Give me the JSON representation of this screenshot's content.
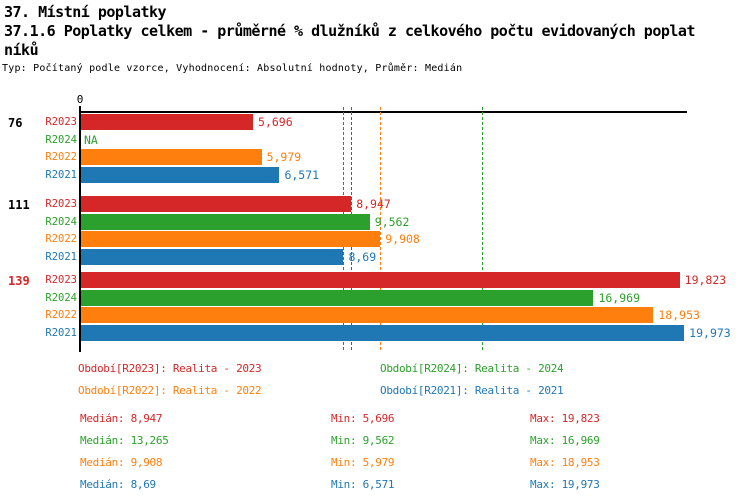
{
  "header": {
    "title_line1": "37. Místní poplatky",
    "title_line2": "37.1.6 Poplatky celkem - průměrné % dlužníků z celkového počtu evidovaných poplat",
    "title_line3": "níků",
    "meta": "Typ: Počítaný podle vzorce, Vyhodnocení: Absolutní hodnoty, Průměr: Medián"
  },
  "colors": {
    "R2023": "#d62728",
    "R2024": "#2ca02c",
    "R2022": "#ff7f0e",
    "R2021": "#1f77b4",
    "axis": "#000000",
    "highlight_group_label": "#d62728",
    "group_label": "#000000"
  },
  "chart_data": {
    "type": "bar",
    "orientation": "horizontal",
    "axis": {
      "tick0_label": "0",
      "xlim": [
        0,
        20
      ],
      "grid": false
    },
    "series_order": [
      "R2023",
      "R2024",
      "R2022",
      "R2021"
    ],
    "groups": [
      {
        "label": "76",
        "highlight": false,
        "bars": [
          {
            "series": "R2023",
            "value": 5.696,
            "label": "5,696"
          },
          {
            "series": "R2024",
            "value": null,
            "label": "NA"
          },
          {
            "series": "R2022",
            "value": 5.979,
            "label": "5,979"
          },
          {
            "series": "R2021",
            "value": 6.571,
            "label": "6,571"
          }
        ]
      },
      {
        "label": "111",
        "highlight": false,
        "bars": [
          {
            "series": "R2023",
            "value": 8.947,
            "label": "8,947"
          },
          {
            "series": "R2024",
            "value": 9.562,
            "label": "9,562"
          },
          {
            "series": "R2022",
            "value": 9.908,
            "label": "9,908"
          },
          {
            "series": "R2021",
            "value": 8.69,
            "label": "8,69"
          }
        ]
      },
      {
        "label": "139",
        "highlight": true,
        "bars": [
          {
            "series": "R2023",
            "value": 19.823,
            "label": "19,823"
          },
          {
            "series": "R2024",
            "value": 16.969,
            "label": "16,969"
          },
          {
            "series": "R2022",
            "value": 18.953,
            "label": "18,953"
          },
          {
            "series": "R2021",
            "value": 19.973,
            "label": "19,973"
          }
        ]
      }
    ],
    "median_lines": [
      {
        "series": "R2021",
        "value": 8.69
      },
      {
        "series": "R2023",
        "value": 8.947
      },
      {
        "series": "R2022",
        "value": 9.908
      },
      {
        "series": "R2024",
        "value": 13.265
      }
    ],
    "legend_position": "bottom"
  },
  "legend": {
    "items": [
      {
        "series": "R2023",
        "label": "Období[R2023]: Realita - 2023"
      },
      {
        "series": "R2024",
        "label": "Období[R2024]: Realita - 2024"
      },
      {
        "series": "R2022",
        "label": "Období[R2022]: Realita - 2022"
      },
      {
        "series": "R2021",
        "label": "Období[R2021]: Realita - 2021"
      }
    ]
  },
  "stats": {
    "rows": [
      {
        "series": "R2023",
        "median_label": "Medián",
        "median": "8,947",
        "min_label": "Min",
        "min": "5,696",
        "max_label": "Max",
        "max": "19,823"
      },
      {
        "series": "R2024",
        "median_label": "Medián",
        "median": "13,265",
        "min_label": "Min",
        "min": "9,562",
        "max_label": "Max",
        "max": "16,969"
      },
      {
        "series": "R2022",
        "median_label": "Medián",
        "median": "9,908",
        "min_label": "Min",
        "min": "5,979",
        "max_label": "Max",
        "max": "18,953"
      },
      {
        "series": "R2021",
        "median_label": "Medián",
        "median": "8,69",
        "min_label": "Min",
        "min": "6,571",
        "max_label": "Max",
        "max": "19,973"
      }
    ]
  }
}
